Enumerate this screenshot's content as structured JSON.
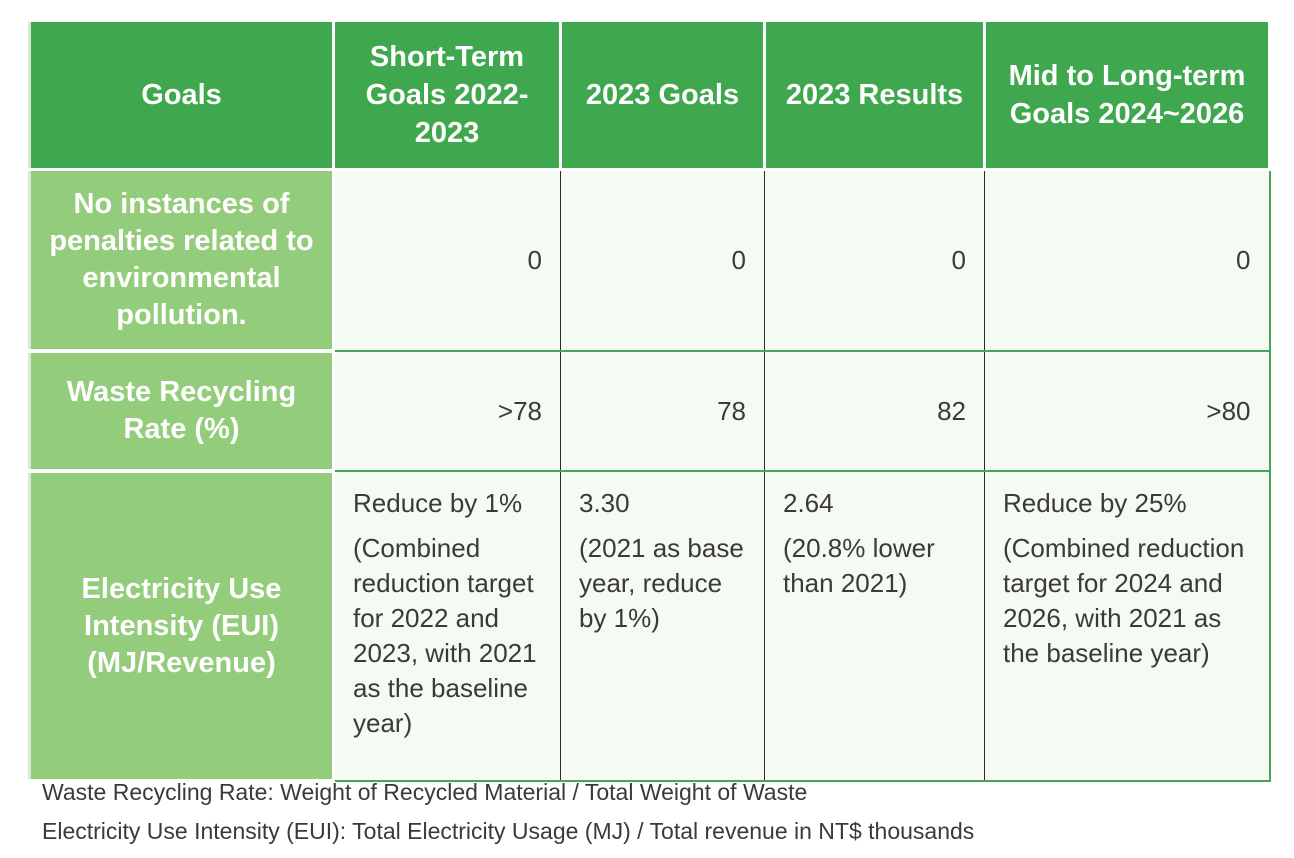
{
  "table": {
    "headers": [
      "Goals",
      "Short-Term Goals 2022-2023",
      "2023 Goals",
      "2023 Results",
      "Mid to Long-term Goals 2024~2026"
    ],
    "rows": [
      {
        "label": "No instances of penalties related to environmental pollution.",
        "short_term": "0",
        "goals_2023": "0",
        "results_2023": "0",
        "mid_long": "0"
      },
      {
        "label": "Waste Recycling Rate (%)",
        "short_term": ">78",
        "goals_2023": "78",
        "results_2023": "82",
        "mid_long": ">80"
      },
      {
        "label": "Electricity Use Intensity (EUI) (MJ/Revenue)",
        "short_term": {
          "main": "Reduce by 1%",
          "note": "(Combined reduction target for 2022 and 2023, with 2021 as the baseline year)"
        },
        "goals_2023": {
          "main": "3.30",
          "note": "(2021 as base year, reduce by 1%)"
        },
        "results_2023": {
          "main": "2.64",
          "note": "(20.8% lower than 2021)"
        },
        "mid_long": {
          "main": "Reduce by 25%",
          "note": "(Combined reduction target for 2024 and 2026, with 2021 as the baseline year)"
        }
      }
    ]
  },
  "notes": [
    "Waste Recycling Rate: Weight of Recycled Material / Total Weight of Waste",
    "Electricity Use Intensity (EUI): Total Electricity Usage (MJ) / Total revenue in NT$ thousands"
  ],
  "colors": {
    "header_green": "#3fa84e",
    "label_green": "#93cd7b",
    "cell_background": "#f5faf2",
    "text_gray": "#3a3a3a"
  }
}
